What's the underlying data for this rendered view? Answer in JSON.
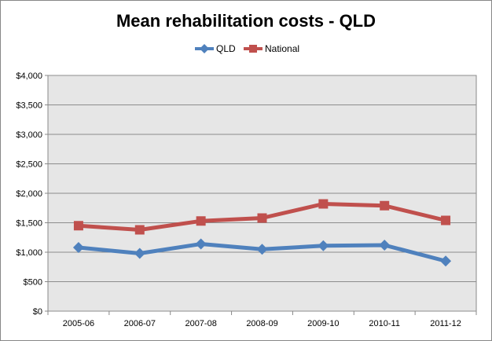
{
  "chart_data": {
    "type": "line",
    "title": "Mean rehabilitation costs - QLD",
    "xlabel": "",
    "ylabel": "",
    "categories": [
      "2005-06",
      "2006-07",
      "2007-08",
      "2008-09",
      "2009-10",
      "2010-11",
      "2011-12"
    ],
    "ylim": [
      0,
      4000
    ],
    "yticks": [
      0,
      500,
      1000,
      1500,
      2000,
      2500,
      3000,
      3500,
      4000
    ],
    "ytick_labels": [
      "$0",
      "$500",
      "$1,000",
      "$1,500",
      "$2,000",
      "$2,500",
      "$3,000",
      "$3,500",
      "$4,000"
    ],
    "grid": true,
    "legend_position": "top",
    "series": [
      {
        "name": "QLD",
        "values": [
          1080,
          980,
          1140,
          1050,
          1110,
          1120,
          850
        ],
        "color": "#4F81BD",
        "marker": "diamond"
      },
      {
        "name": "National",
        "values": [
          1450,
          1380,
          1530,
          1580,
          1820,
          1790,
          1540
        ],
        "color": "#C0504D",
        "marker": "square"
      }
    ]
  }
}
